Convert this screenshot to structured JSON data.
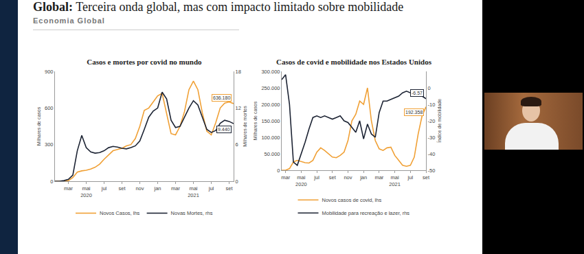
{
  "slide": {
    "title_bold": "Global:",
    "title": "Terceira onda global, mas com impacto limitado sobre mobilidade",
    "section": "Economia Global"
  },
  "chart_data": [
    {
      "type": "line",
      "title": "Casos e mortes por covid no mundo",
      "categories": [
        null,
        null,
        null,
        "mar",
        null,
        null,
        null,
        "mai\n2020",
        null,
        null,
        null,
        "jul",
        null,
        null,
        null,
        "set",
        null,
        null,
        null,
        "nov",
        null,
        null,
        null,
        "jan",
        null,
        null,
        null,
        "mar",
        null,
        null,
        null,
        "mai\n2021",
        null,
        null,
        null,
        "jul",
        null,
        null,
        null,
        "set",
        null
      ],
      "series": [
        {
          "name": "Novos Casos, lhs",
          "color": "#f0a035",
          "axis": "y",
          "values": [
            0,
            0,
            2,
            5,
            30,
            75,
            85,
            90,
            100,
            115,
            140,
            180,
            215,
            250,
            260,
            270,
            290,
            300,
            350,
            450,
            580,
            600,
            650,
            700,
            720,
            560,
            390,
            380,
            450,
            570,
            750,
            820,
            750,
            560,
            410,
            380,
            480,
            600,
            640,
            650,
            636.18
          ],
          "value_labels": [
            null,
            null,
            null,
            null,
            null,
            null,
            null,
            null,
            null,
            null,
            null,
            null,
            null,
            null,
            null,
            null,
            null,
            null,
            null,
            null,
            null,
            null,
            null,
            null,
            null,
            null,
            null,
            null,
            null,
            null,
            null,
            null,
            null,
            null,
            null,
            null,
            null,
            null,
            null,
            null,
            "636.180"
          ]
        },
        {
          "name": "Novas Mortes, rhs",
          "color": "#1c2333",
          "axis": "y2",
          "values": [
            0,
            0,
            0.1,
            0.3,
            1,
            5,
            7.5,
            5.5,
            4.8,
            4.6,
            4.7,
            5,
            5.5,
            5.7,
            5.6,
            5.4,
            5.3,
            5.5,
            5.8,
            6.6,
            8.5,
            10.5,
            11.5,
            12,
            14.6,
            13.5,
            10,
            8.8,
            9,
            10.5,
            12,
            13.2,
            12.5,
            10.5,
            8.5,
            8,
            8.3,
            9.5,
            10,
            9.8,
            9.44
          ],
          "value_labels": [
            null,
            null,
            null,
            null,
            null,
            null,
            null,
            null,
            null,
            null,
            null,
            null,
            null,
            null,
            null,
            null,
            null,
            null,
            null,
            null,
            null,
            null,
            null,
            null,
            null,
            null,
            null,
            null,
            null,
            null,
            null,
            null,
            null,
            null,
            null,
            null,
            null,
            null,
            null,
            null,
            "9.440"
          ]
        }
      ],
      "y_label": "Milhares de casos",
      "y2_label": "Milhares de mortes",
      "ylim": [
        0,
        900
      ],
      "yticks": [
        0,
        300,
        600,
        900
      ],
      "y2lim": [
        0,
        18
      ],
      "y2ticks": [
        0,
        6,
        12,
        18
      ],
      "legend": "bottom",
      "grid": false
    },
    {
      "type": "line",
      "title": "Casos de covid e mobilidade nos Estados Unidos",
      "categories": [
        null,
        "mar",
        null,
        null,
        null,
        "mai\n2020",
        null,
        null,
        null,
        "jul",
        null,
        null,
        null,
        "set",
        null,
        null,
        null,
        "nov",
        null,
        null,
        null,
        "jan",
        null,
        null,
        null,
        "mar",
        null,
        null,
        null,
        "mai\n2021",
        null,
        null,
        null,
        "jul",
        null,
        null,
        null,
        "set"
      ],
      "series": [
        {
          "name": "Novos casos de covid, lhs",
          "color": "#f0a035",
          "axis": "y",
          "values": [
            0,
            0,
            5000,
            25000,
            30000,
            27000,
            23000,
            22000,
            30000,
            55000,
            68000,
            60000,
            50000,
            40000,
            38000,
            45000,
            55000,
            90000,
            150000,
            170000,
            210000,
            200000,
            250000,
            150000,
            90000,
            65000,
            60000,
            68000,
            70000,
            45000,
            30000,
            15000,
            12000,
            15000,
            40000,
            110000,
            165000,
            192358
          ],
          "value_labels": [
            null,
            null,
            null,
            null,
            null,
            null,
            null,
            null,
            null,
            null,
            null,
            null,
            null,
            null,
            null,
            null,
            null,
            null,
            null,
            null,
            null,
            null,
            null,
            null,
            null,
            null,
            null,
            null,
            null,
            null,
            null,
            null,
            null,
            null,
            null,
            null,
            null,
            "192.358"
          ]
        },
        {
          "name": "Mobilidade para recreação e lazer, rhs",
          "color": "#1c2333",
          "axis": "y2",
          "values": [
            5,
            8,
            -10,
            -45,
            -47,
            -40,
            -33,
            -25,
            -18,
            -17,
            -18,
            -17,
            -18,
            -19,
            -18,
            -17,
            -20,
            -21,
            -24,
            -27,
            -20,
            -31,
            -22,
            -28,
            -30,
            -15,
            -8,
            -8,
            -7,
            -6,
            -5,
            -3,
            -2,
            -3,
            -2,
            -4,
            -5,
            -6.57
          ],
          "value_labels": [
            null,
            null,
            null,
            null,
            null,
            null,
            null,
            null,
            null,
            null,
            null,
            null,
            null,
            null,
            null,
            null,
            null,
            null,
            null,
            null,
            null,
            null,
            null,
            null,
            null,
            null,
            null,
            null,
            null,
            null,
            null,
            null,
            null,
            null,
            null,
            null,
            null,
            "-6.57"
          ]
        }
      ],
      "y_label": "Milhares de casos",
      "y2_label": "Índice de mobilidade",
      "ylim": [
        0,
        300000
      ],
      "yticks": [
        0,
        {
          "value": 50000,
          "label": "50.000"
        },
        {
          "value": 100000,
          "label": "100.000"
        },
        {
          "value": 150000,
          "label": "150.000"
        },
        {
          "value": 200000,
          "label": "200.000"
        },
        {
          "value": 250000,
          "label": "250.000"
        },
        {
          "value": 300000,
          "label": "300.000"
        }
      ],
      "y2lim": [
        -50,
        10
      ],
      "y2ticks": [
        -50,
        -40,
        -30,
        -20,
        -10,
        0
      ],
      "legend": "bottom",
      "grid": false
    }
  ]
}
